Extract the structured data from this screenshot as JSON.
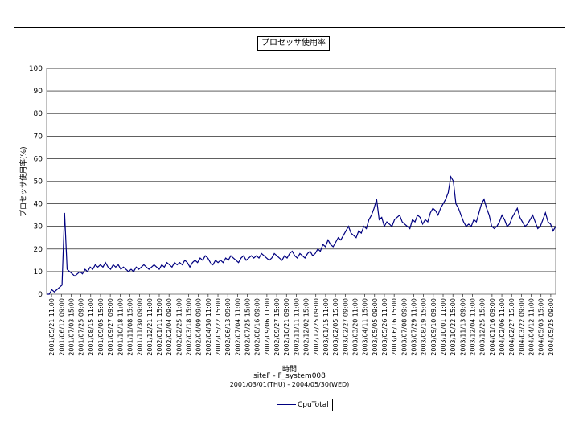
{
  "chart_data": {
    "type": "line",
    "title": "プロセッサ使用率",
    "xlabel": "時間",
    "ylabel": "プロセッサ使用率(%)",
    "subtitle1": "siteF - F_system008",
    "subtitle2": "2001/03/01(THU) - 2004/05/30(WED)",
    "ylim": [
      0,
      100
    ],
    "yticks": [
      0,
      10,
      20,
      30,
      40,
      50,
      60,
      70,
      80,
      90,
      100
    ],
    "grid": true,
    "legend_position": "bottom",
    "xticks": [
      "2001/05/21 11:00",
      "2001/06/12 09:00",
      "2001/07/03 15:00",
      "2001/07/25 09:00",
      "2001/08/15 11:00",
      "2001/09/05 15:00",
      "2001/09/27 09:00",
      "2001/10/18 11:00",
      "2001/11/08 15:00",
      "2001/11/30 09:00",
      "2001/12/21 11:00",
      "2002/01/11 15:00",
      "2002/02/04 09:00",
      "2002/02/25 11:00",
      "2002/03/18 15:00",
      "2002/04/09 09:00",
      "2002/04/30 11:00",
      "2002/05/22 15:00",
      "2002/06/13 09:00",
      "2002/07/04 11:00",
      "2002/07/25 15:00",
      "2002/08/16 09:00",
      "2002/09/06 11:00",
      "2002/09/27 15:00",
      "2002/10/21 09:00",
      "2002/11/11 11:00",
      "2002/12/02 15:00",
      "2002/12/25 09:00",
      "2003/01/15 11:00",
      "2003/02/05 15:00",
      "2003/02/27 09:00",
      "2003/03/20 11:00",
      "2003/04/11 15:00",
      "2003/05/05 09:00",
      "2003/05/26 11:00",
      "2003/06/16 15:00",
      "2003/07/08 09:00",
      "2003/07/29 11:00",
      "2003/08/19 15:00",
      "2003/09/10 09:00",
      "2003/10/01 11:00",
      "2003/10/22 15:00",
      "2003/11/13 09:00",
      "2003/12/04 11:00",
      "2003/12/25 15:00",
      "2004/01/16 09:00",
      "2004/02/06 11:00",
      "2004/02/27 15:00",
      "2004/03/22 09:00",
      "2004/04/12 11:00",
      "2004/05/03 15:00",
      "2004/05/25 09:00"
    ],
    "series": [
      {
        "name": "CpuTotal",
        "color": "#000080",
        "values": [
          0,
          0,
          2,
          1,
          2,
          3,
          4,
          36,
          11,
          10,
          9,
          8,
          9,
          10,
          9,
          11,
          10,
          12,
          11,
          13,
          12,
          13,
          12,
          14,
          12,
          11,
          13,
          12,
          13,
          11,
          12,
          11,
          10,
          11,
          10,
          12,
          11,
          12,
          13,
          12,
          11,
          12,
          13,
          12,
          11,
          13,
          12,
          14,
          13,
          12,
          14,
          13,
          14,
          13,
          15,
          14,
          12,
          14,
          15,
          14,
          16,
          15,
          17,
          16,
          14,
          13,
          15,
          14,
          15,
          14,
          16,
          15,
          17,
          16,
          15,
          14,
          16,
          17,
          15,
          16,
          17,
          16,
          17,
          16,
          18,
          17,
          16,
          15,
          16,
          18,
          17,
          16,
          15,
          17,
          16,
          18,
          19,
          17,
          16,
          18,
          17,
          16,
          18,
          19,
          17,
          18,
          20,
          19,
          22,
          21,
          24,
          22,
          21,
          23,
          25,
          24,
          26,
          28,
          30,
          27,
          26,
          25,
          28,
          27,
          30,
          29,
          33,
          35,
          38,
          42,
          33,
          34,
          30,
          32,
          31,
          30,
          33,
          34,
          35,
          32,
          31,
          30,
          29,
          33,
          32,
          35,
          34,
          31,
          33,
          32,
          36,
          38,
          37,
          35,
          38,
          40,
          42,
          45,
          52,
          50,
          40,
          38,
          35,
          32,
          30,
          31,
          30,
          33,
          32,
          36,
          40,
          42,
          38,
          35,
          30,
          29,
          30,
          32,
          35,
          33,
          30,
          31,
          34,
          36,
          38,
          34,
          32,
          30,
          31,
          33,
          35,
          32,
          29,
          30,
          33,
          36,
          32,
          31,
          28,
          30
        ]
      }
    ]
  },
  "legend": {
    "label": "CpuTotal"
  }
}
